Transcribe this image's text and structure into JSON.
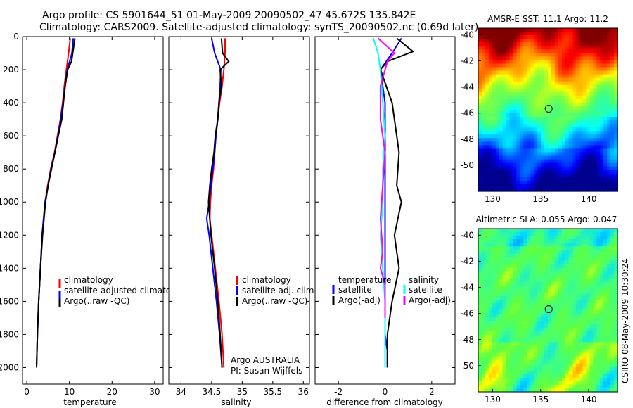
{
  "header": {
    "line1": "Argo profile: CS 5901644_51 01-May-2009 20090502_47 45.672S 135.842E",
    "line2": "Climatology: CARS2009. Satellite-adjusted climatology: synTS_20090502.nc (0.69d later)"
  },
  "footer_stamp": "CSIRO 08-May-2009 10:30:24",
  "chart_data": [
    {
      "id": "temperature",
      "type": "line",
      "xlabel": "temperature",
      "xlim": [
        -1,
        32
      ],
      "ylim": [
        0,
        2100
      ],
      "y_reversed": true,
      "xticks": [
        "0",
        "10",
        "20",
        "30"
      ],
      "yticks": [
        "0",
        "200",
        "400",
        "600",
        "800",
        "1000",
        "1200",
        "1400",
        "1600",
        "1800",
        "2000"
      ],
      "legend": [
        "climatology",
        "satellite-adjusted climatology",
        "Argo(..raw -QC)"
      ],
      "series": [
        {
          "name": "climatology",
          "color": "#ff0000",
          "x": [
            10.2,
            9.8,
            9.3,
            8.8,
            8.4,
            7.9,
            7.2,
            6.5,
            5.6,
            4.9,
            4.3,
            3.6,
            3.2,
            2.8,
            2.5,
            2.3
          ],
          "y": [
            10,
            100,
            200,
            300,
            400,
            500,
            600,
            700,
            800,
            900,
            1000,
            1200,
            1400,
            1600,
            1800,
            2000
          ]
        },
        {
          "name": "satellite-adjusted climatology",
          "color": "#0000ff",
          "x": [
            10.9,
            10.6,
            9.5,
            9.0,
            8.5,
            8.0,
            7.3,
            6.6,
            5.7,
            5.0,
            4.3,
            3.6,
            3.2,
            2.8,
            2.5,
            2.3
          ],
          "y": [
            10,
            100,
            200,
            300,
            400,
            500,
            600,
            700,
            800,
            900,
            1000,
            1200,
            1400,
            1600,
            1800,
            2000
          ]
        },
        {
          "name": "Argo(..raw -QC)",
          "color": "#000000",
          "x": [
            11.3,
            10.9,
            10.5,
            9.6,
            9.0,
            8.6,
            8.2,
            7.4,
            6.6,
            5.8,
            5.0,
            4.4,
            3.7,
            3.2,
            2.8,
            2.5,
            2.3
          ],
          "y": [
            10,
            80,
            150,
            200,
            300,
            400,
            500,
            600,
            700,
            800,
            900,
            1000,
            1200,
            1400,
            1600,
            1800,
            2000
          ]
        }
      ]
    },
    {
      "id": "salinity",
      "type": "line",
      "xlabel": "salinity",
      "xlim": [
        33.8,
        36.1
      ],
      "ylim": [
        0,
        2100
      ],
      "y_reversed": true,
      "xticks": [
        "34",
        "34.5",
        "35",
        "35.5",
        "36"
      ],
      "legend": [
        "climatology",
        "satellite adj. clim.",
        "Argo(..raw -QC)"
      ],
      "annotation": [
        "Argo AUSTRALIA",
        "PI: Susan Wijffels"
      ],
      "series": [
        {
          "name": "climatology",
          "color": "#ff0000",
          "x": [
            34.72,
            34.72,
            34.7,
            34.67,
            34.63,
            34.6,
            34.57,
            34.55,
            34.53,
            34.5,
            34.48,
            34.47,
            34.5,
            34.56,
            34.62,
            34.67,
            34.7
          ],
          "y": [
            10,
            100,
            200,
            300,
            400,
            500,
            600,
            700,
            800,
            900,
            1000,
            1100,
            1200,
            1400,
            1600,
            1800,
            2000
          ]
        },
        {
          "name": "satellite adj. clim.",
          "color": "#0000ff",
          "x": [
            34.5,
            34.55,
            34.65,
            34.64,
            34.62,
            34.6,
            34.57,
            34.55,
            34.52,
            34.49,
            34.46,
            34.42,
            34.46,
            34.52,
            34.58,
            34.63,
            34.67
          ],
          "y": [
            10,
            100,
            200,
            300,
            400,
            500,
            600,
            700,
            800,
            900,
            1000,
            1100,
            1200,
            1400,
            1600,
            1800,
            2000
          ]
        },
        {
          "name": "Argo(..raw -QC)",
          "color": "#000000",
          "x": [
            34.66,
            34.68,
            34.78,
            34.64,
            34.66,
            34.62,
            34.6,
            34.56,
            34.54,
            34.5,
            34.47,
            34.45,
            34.49,
            34.55,
            34.6,
            34.64,
            34.67
          ],
          "y": [
            10,
            100,
            150,
            200,
            300,
            400,
            500,
            600,
            700,
            800,
            900,
            1000,
            1200,
            1400,
            1600,
            1800,
            2000
          ]
        }
      ]
    },
    {
      "id": "difference",
      "type": "line",
      "xlabel": "difference from climatology",
      "xlim": [
        -3,
        3
      ],
      "ylim": [
        0,
        2100
      ],
      "y_reversed": true,
      "xticks": [
        "-2",
        "0",
        "2"
      ],
      "legend_headers": [
        "temperature",
        "salinity"
      ],
      "legend": [
        "satellite",
        "Argo(-adj)",
        "satellite",
        "Argo(-adj)"
      ],
      "series": [
        {
          "name": "temperature satellite",
          "color": "#0000ff",
          "x": [
            0.7,
            0.3,
            -0.2,
            -0.1,
            0.0,
            0.0,
            0.0,
            0.0,
            0.0,
            0.0,
            0.0,
            0.0,
            0.0,
            0.1,
            0.1
          ],
          "y": [
            10,
            100,
            200,
            300,
            400,
            600,
            800,
            1000,
            1200,
            1400,
            1600,
            1700,
            1800,
            1900,
            2000
          ]
        },
        {
          "name": "temperature Argo(-adj)",
          "color": "#000000",
          "x": [
            0.5,
            1.2,
            0.1,
            -0.2,
            0.3,
            0.6,
            0.5,
            0.7,
            0.4,
            0.6,
            0.3,
            0.2,
            0.1,
            0.1
          ],
          "y": [
            10,
            90,
            150,
            200,
            400,
            700,
            900,
            1000,
            1200,
            1400,
            1600,
            1700,
            1800,
            2000
          ]
        },
        {
          "name": "salinity satellite",
          "color": "#00ffff",
          "x": [
            -0.5,
            -0.3,
            -0.2,
            -0.1,
            0.0,
            -0.1,
            -0.1,
            -0.2,
            -0.1,
            0.0,
            0.0,
            0.0
          ],
          "y": [
            10,
            100,
            200,
            400,
            600,
            800,
            1000,
            1200,
            1400,
            1600,
            1800,
            2000
          ]
        },
        {
          "name": "salinity Argo(-adj)",
          "color": "#ff00ff",
          "x": [
            -0.3,
            0.4,
            0.1,
            -0.2,
            -0.2,
            0.0,
            -0.1,
            -0.2,
            -0.1,
            -0.2,
            0.0,
            0.0
          ],
          "y": [
            10,
            100,
            150,
            300,
            500,
            700,
            900,
            1100,
            1300,
            1400,
            1500,
            1700
          ]
        }
      ]
    }
  ],
  "maps": [
    {
      "id": "sst",
      "title": "AMSR-E SST: 11.1 Argo: 11.2",
      "xticks": [
        "130",
        "135",
        "140"
      ],
      "yticks": [
        "-40",
        "-42",
        "-44",
        "-46",
        "-48",
        "-50"
      ],
      "lon_range": [
        128.5,
        143
      ],
      "lat_range": [
        -52,
        -39.5
      ],
      "marker": {
        "lon": 135.842,
        "lat": -45.672
      },
      "colormap": [
        "#00008f",
        "#0000ff",
        "#0080ff",
        "#00ffff",
        "#40ff80",
        "#80ff40",
        "#ffff00",
        "#ff8000",
        "#ff0000",
        "#800000"
      ]
    },
    {
      "id": "sla",
      "title": "Altimetric SLA: 0.055 Argo: 0.047",
      "xticks": [
        "130",
        "135",
        "140"
      ],
      "yticks": [
        "-40",
        "-42",
        "-44",
        "-46",
        "-48",
        "-50"
      ],
      "lon_range": [
        128.5,
        143
      ],
      "lat_range": [
        -52,
        -39.5
      ],
      "marker": {
        "lon": 135.842,
        "lat": -45.672
      }
    }
  ]
}
